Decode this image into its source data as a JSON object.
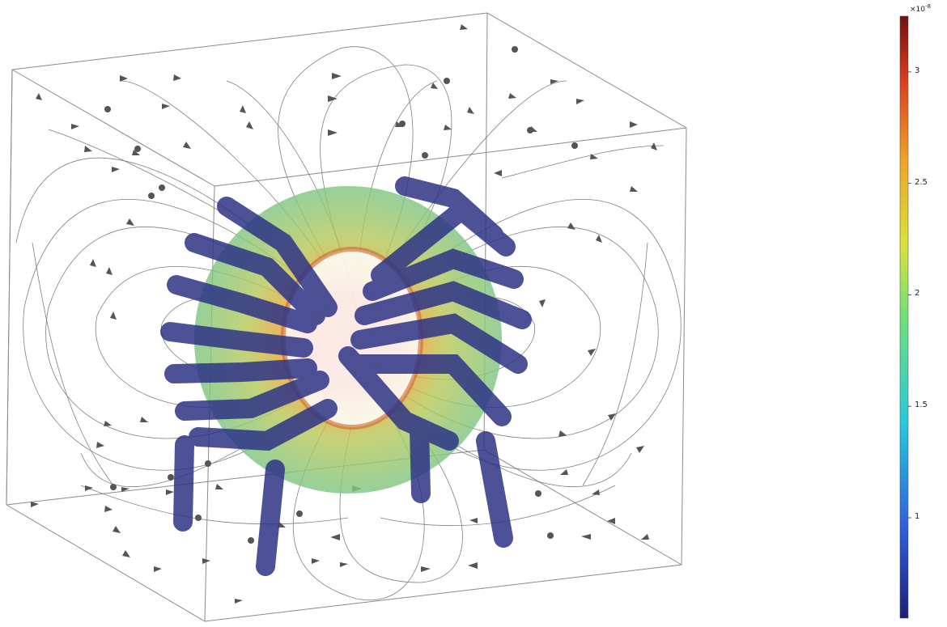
{
  "colorbar": {
    "multiplier_base": "×10",
    "multiplier_exp": "-8",
    "ticks": [
      {
        "label": "3",
        "value": 3
      },
      {
        "label": "2.5",
        "value": 2.5
      },
      {
        "label": "2",
        "value": 2
      },
      {
        "label": "1.5",
        "value": 1.5
      },
      {
        "label": "1",
        "value": 1
      }
    ],
    "range": [
      0.55,
      3.25
    ],
    "colormap": "rainbow"
  },
  "colors": {
    "core_outer": "#86c98a",
    "core_inner": "#e0a63c",
    "winding": "#2e3486",
    "streamline": "#5a5a5a",
    "arrow": "#555555",
    "box_edge": "#8a8a8a"
  }
}
